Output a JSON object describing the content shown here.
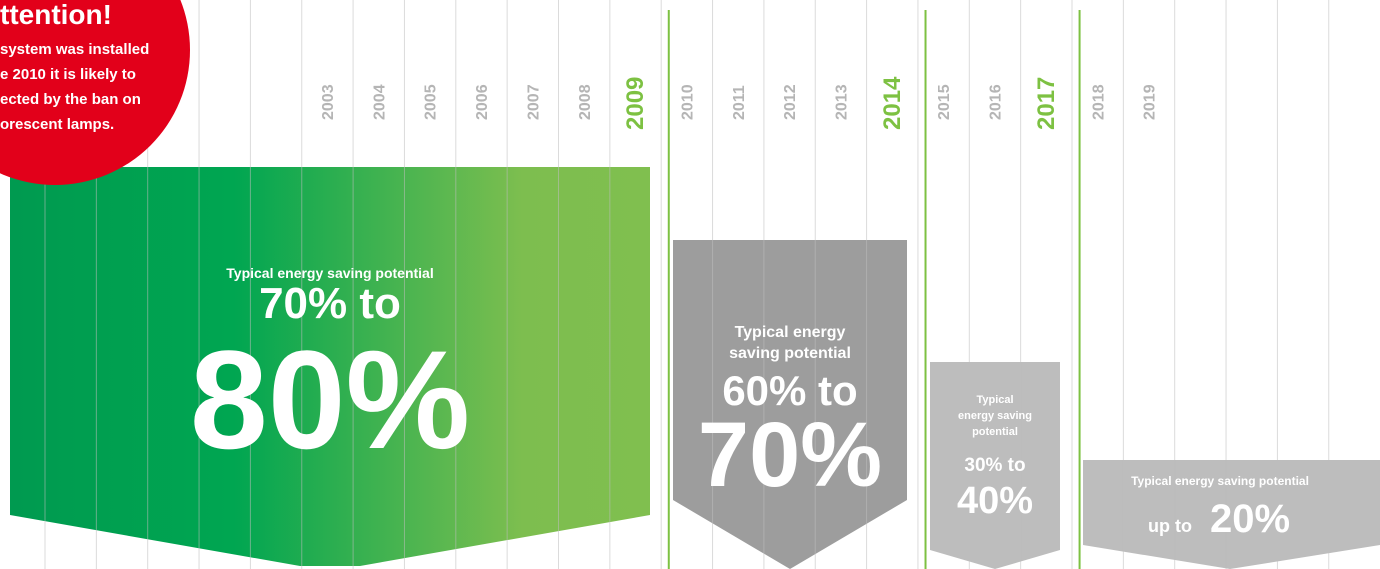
{
  "attention": {
    "title": "ttention!",
    "lines": [
      "system was installed",
      "e 2010 it is likely to",
      "ected by the ban on",
      "orescent lamps."
    ]
  },
  "years": [
    "2003",
    "2004",
    "2005",
    "2006",
    "2007",
    "2008",
    "2009",
    "2010",
    "2011",
    "2012",
    "2013",
    "2014",
    "2015",
    "2016",
    "2017",
    "2018",
    "2019"
  ],
  "highlighted_years": [
    "2009",
    "2014",
    "2017"
  ],
  "panels": [
    {
      "label": [
        "Typical energy saving potential"
      ],
      "range_from": "70% to",
      "range_to": "80%"
    },
    {
      "label": [
        "Typical energy",
        "saving potential"
      ],
      "range_from": "60% to",
      "range_to": "70%"
    },
    {
      "label": [
        "Typical",
        "energy saving",
        "potential"
      ],
      "range_from": "30% to",
      "range_to": "40%"
    },
    {
      "label": [
        "Typical energy saving potential"
      ],
      "range_from": "up to",
      "range_to": "20%"
    }
  ]
}
